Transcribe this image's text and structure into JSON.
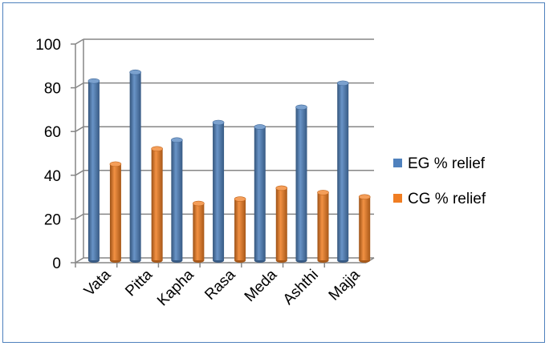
{
  "chart_data": {
    "type": "bar",
    "title": "",
    "xlabel": "",
    "ylabel": "",
    "categories": [
      "Vata",
      "Pitta",
      "Kapha",
      "Rasa",
      "Meda",
      "Ashthi",
      "Majja"
    ],
    "series": [
      {
        "name": "EG % relief",
        "color": "#4f81bd",
        "values": [
          82,
          86,
          55,
          63,
          61,
          70,
          81
        ]
      },
      {
        "name": "CG % relief",
        "color": "#f07d22",
        "values": [
          44,
          51,
          26,
          28,
          33,
          31,
          29
        ]
      }
    ],
    "ylim": [
      0,
      100
    ],
    "yticks": [
      0,
      20,
      40,
      60,
      80,
      100
    ],
    "grid": true,
    "style": "3d-cylinder",
    "legend_position": "right"
  }
}
